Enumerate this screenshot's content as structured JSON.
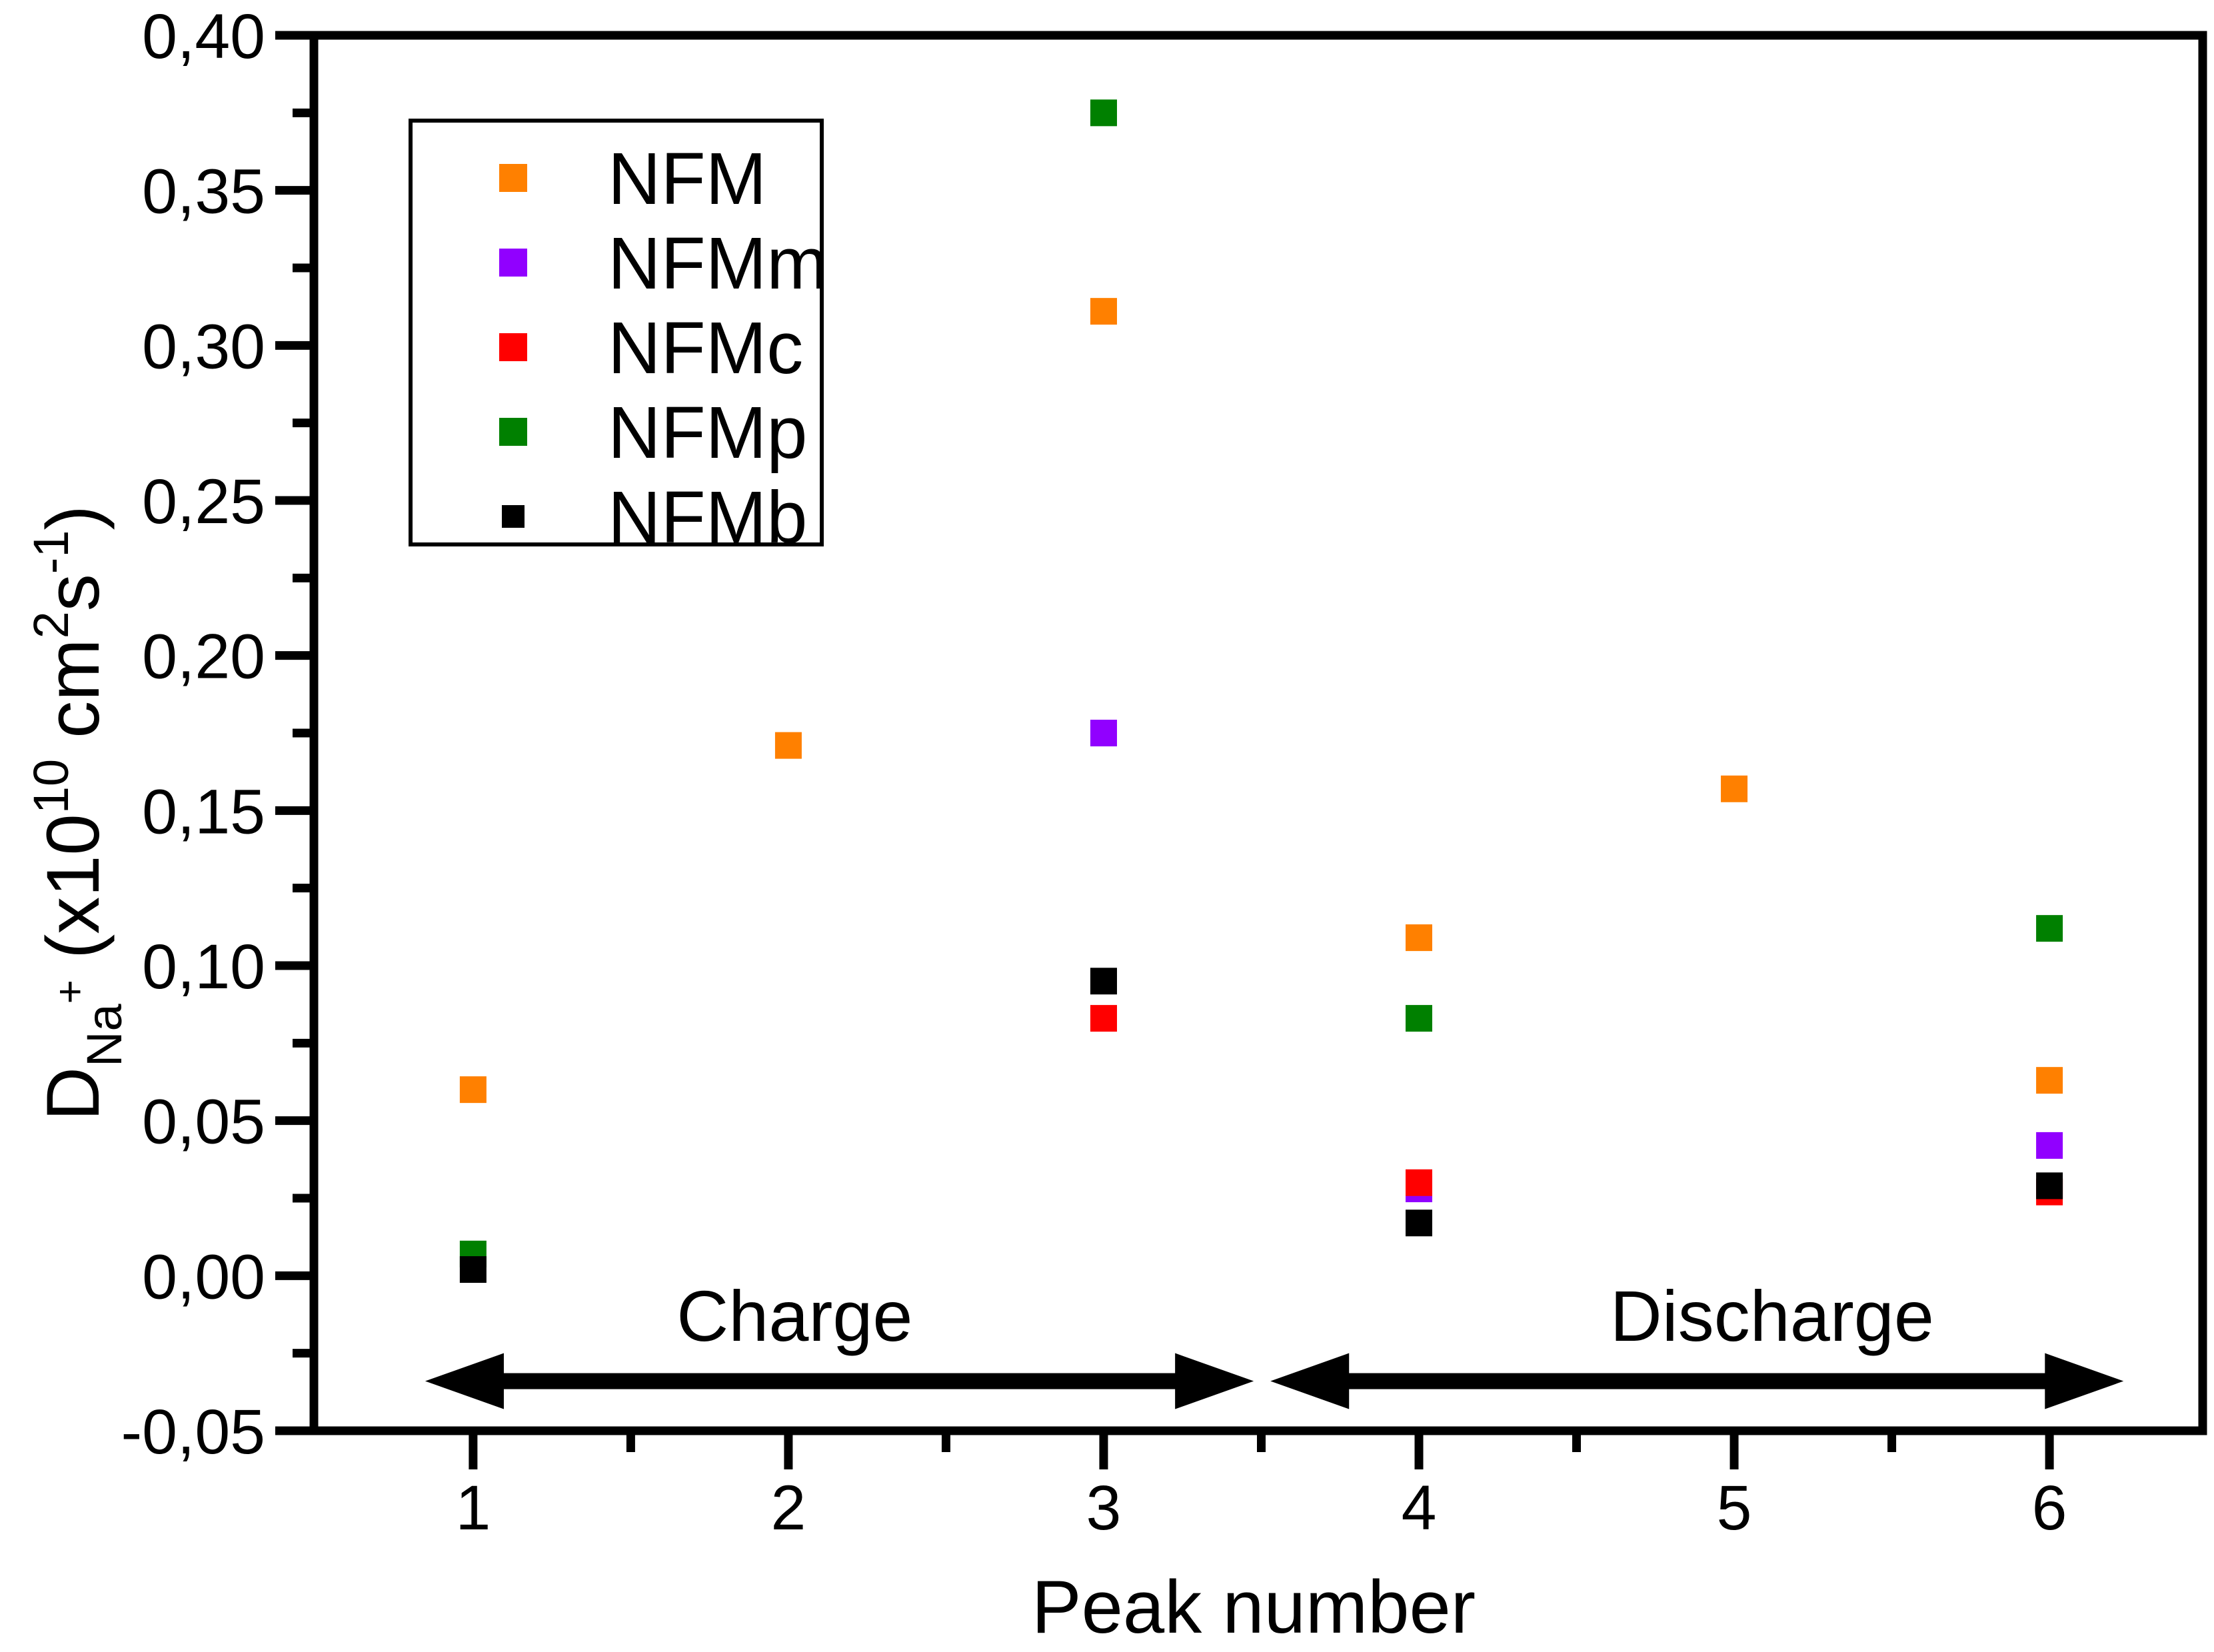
{
  "figure": {
    "background": "#FFFFFF",
    "frame_color": "#000000"
  },
  "axes": {
    "xlabel": "Peak number",
    "ylabel_text": "D_Na+ (x10^10 cm2s-1)",
    "ylabel_parts": [
      {
        "t": "D",
        "s": "n"
      },
      {
        "t": "Na",
        "s": "sub"
      },
      {
        "t": "+",
        "s": "plus"
      },
      {
        "t": " (x10",
        "s": "n"
      },
      {
        "t": "10",
        "s": "sup"
      },
      {
        "t": " cm",
        "s": "n"
      },
      {
        "t": "2",
        "s": "sup"
      },
      {
        "t": "s",
        "s": "n"
      },
      {
        "t": "-1",
        "s": "sup"
      },
      {
        "t": ")",
        "s": "n"
      }
    ],
    "x_tick_labels": [
      "1",
      "2",
      "3",
      "4",
      "5",
      "6"
    ],
    "x_tick_values": [
      1,
      2,
      3,
      4,
      5,
      6
    ],
    "x_minor_tick_values": [
      1.5,
      2.5,
      3.5,
      4.5,
      5.5
    ],
    "y_tick_labels": [
      "0,40",
      "0,35",
      "0,30",
      "0,25",
      "0,20",
      "0,15",
      "0,10",
      "0,05",
      "0,00",
      "-0,05"
    ],
    "y_tick_values": [
      0.4,
      0.35,
      0.3,
      0.25,
      0.2,
      0.15,
      0.1,
      0.05,
      0.0,
      -0.05
    ],
    "y_minor_tick_values": [
      0.375,
      0.325,
      0.275,
      0.225,
      0.175,
      0.125,
      0.075,
      0.025,
      -0.025
    ]
  },
  "legend": {
    "position": "top-left",
    "entries": [
      {
        "label": "NFM",
        "color": "#FF8000",
        "swatch_size": 42
      },
      {
        "label": "NFMm",
        "color": "#9100FF",
        "swatch_size": 42
      },
      {
        "label": "NFMc",
        "color": "#FF0000",
        "swatch_size": 42
      },
      {
        "label": "NFMp",
        "color": "#008000",
        "swatch_size": 42
      },
      {
        "label": "NFMb",
        "color": "#000000",
        "swatch_size": 34
      }
    ]
  },
  "chart_data": {
    "type": "scatter",
    "marker": "square",
    "grid": false,
    "title": "",
    "xlabel": "Peak number",
    "ylabel": "D_Na+ (x10^10 cm2s-1)",
    "xlim": [
      0.495,
      6.486
    ],
    "ylim": [
      -0.05,
      0.4
    ],
    "series": [
      {
        "name": "NFM",
        "color": "#FF8000",
        "points": [
          {
            "x": 1,
            "y": 0.06
          },
          {
            "x": 2,
            "y": 0.171
          },
          {
            "x": 3,
            "y": 0.311
          },
          {
            "x": 4,
            "y": 0.109
          },
          {
            "x": 5,
            "y": 0.157
          },
          {
            "x": 6,
            "y": 0.063
          }
        ]
      },
      {
        "name": "NFMm",
        "color": "#9100FF",
        "points": [
          {
            "x": 3,
            "y": 0.175
          },
          {
            "x": 4,
            "y": 0.028
          },
          {
            "x": 6,
            "y": 0.042
          }
        ]
      },
      {
        "name": "NFMc",
        "color": "#FF0000",
        "points": [
          {
            "x": 3,
            "y": 0.083
          },
          {
            "x": 4,
            "y": 0.03
          },
          {
            "x": 6,
            "y": 0.027
          }
        ]
      },
      {
        "name": "NFMp",
        "color": "#008000",
        "points": [
          {
            "x": 1,
            "y": 0.007
          },
          {
            "x": 3,
            "y": 0.375
          },
          {
            "x": 4,
            "y": 0.083
          },
          {
            "x": 6,
            "y": 0.112
          }
        ]
      },
      {
        "name": "NFMb",
        "color": "#000000",
        "points": [
          {
            "x": 1,
            "y": 0.002
          },
          {
            "x": 3,
            "y": 0.095
          },
          {
            "x": 4,
            "y": 0.017
          },
          {
            "x": 6,
            "y": 0.029
          }
        ]
      }
    ],
    "annotations": {
      "charge": {
        "label": "Charge",
        "label_x": 2.02,
        "label_baseline_y": -0.021,
        "arrow_x": [
          0.848,
          3.476
        ],
        "arrow_y": -0.034
      },
      "discharge": {
        "label": "Discharge",
        "label_x": 5.12,
        "label_baseline_y": -0.021,
        "arrow_x": [
          3.529,
          6.235
        ],
        "arrow_y": -0.034
      }
    }
  }
}
